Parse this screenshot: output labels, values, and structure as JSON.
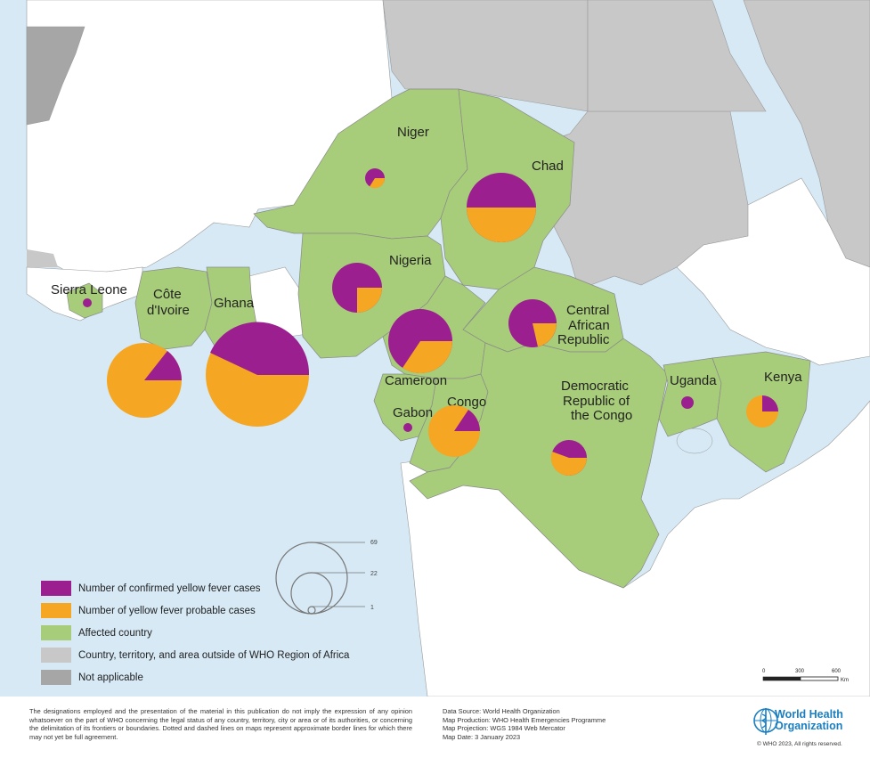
{
  "colors": {
    "confirmed": "#9b1f8f",
    "probable": "#f5a623",
    "affected": "#a8cd7a",
    "outside": "#c8c8c8",
    "not_applicable": "#a6a6a6",
    "sea": "#d6e9f5",
    "land_other": "#ffffff"
  },
  "countries": [
    {
      "id": "niger",
      "name": "Niger"
    },
    {
      "id": "chad",
      "name": "Chad"
    },
    {
      "id": "nigeria",
      "name": "Nigeria"
    },
    {
      "id": "sierra-leone",
      "name": "Sierra Leone"
    },
    {
      "id": "cote-divoire",
      "name": "Côte d'Ivoire"
    },
    {
      "id": "ghana",
      "name": "Ghana"
    },
    {
      "id": "central-african-republic",
      "name": "Central African Republic"
    },
    {
      "id": "cameroon",
      "name": "Cameroon"
    },
    {
      "id": "congo",
      "name": "Congo"
    },
    {
      "id": "gabon",
      "name": "Gabon"
    },
    {
      "id": "drc",
      "name": "Democratic Republic of the Congo"
    },
    {
      "id": "uganda",
      "name": "Uganda"
    },
    {
      "id": "kenya",
      "name": "Kenya"
    }
  ],
  "legend": {
    "items": [
      {
        "key": "confirmed",
        "label": "Number of confirmed yellow fever cases"
      },
      {
        "key": "probable",
        "label": "Number of yellow fever probable cases"
      },
      {
        "key": "affected",
        "label": "Affected country"
      },
      {
        "key": "outside",
        "label": "Country, territory, and area outside of WHO Region of Africa"
      },
      {
        "key": "not_applicable",
        "label": "Not applicable"
      }
    ],
    "size_values": [
      69,
      22,
      1
    ]
  },
  "scale": {
    "ticks": [
      "0",
      "300",
      "600"
    ],
    "unit": "Km"
  },
  "footer": {
    "disclaimer": "The designations employed and the presentation of the material in this publication do not imply the expression of any opinion whatsoever on the part of WHO concerning the legal status of any country, territory, city or area or of its authorities, or concerning the delimitation of its frontiers or boundaries. Dotted and dashed lines on maps represent approximate border lines for which there may not yet be full agreement.",
    "data_source": "Data Source: World Health Organization",
    "map_production": "Map Production: WHO Health Emergencies Programme",
    "map_projection": "Map Projection: WGS 1984 Web Mercator",
    "map_date": "Map Date: 3 January 2023",
    "org_line1": "World Health",
    "org_line2": "Organization",
    "copyright": "© WHO 2023, All rights reserved."
  }
}
